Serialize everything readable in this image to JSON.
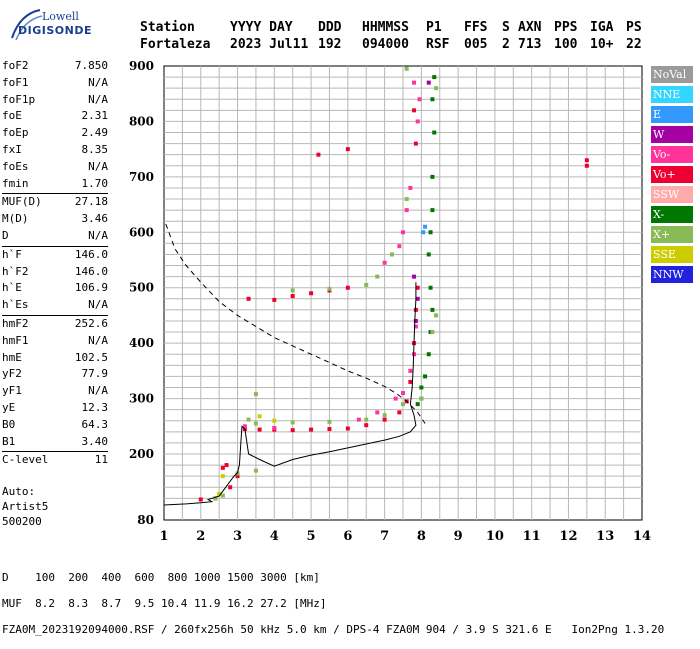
{
  "logo": {
    "line1": "Lowell",
    "line2": "DIGISONDE"
  },
  "header": {
    "row1": [
      "Station",
      "YYYY DAY",
      "DDD",
      "HHMMSS",
      "P1",
      "FFS",
      "S",
      "AXN",
      "PPS",
      "IGA",
      "PS"
    ],
    "row2": [
      "Fortaleza",
      "2023 Jul11",
      "192",
      "094000",
      "RSF",
      "005",
      "2",
      "713",
      "100",
      "10+",
      "22"
    ]
  },
  "params": {
    "group1": [
      {
        "label": "foF2",
        "value": "7.850"
      },
      {
        "label": "foF1",
        "value": "N/A"
      },
      {
        "label": "foF1p",
        "value": "N/A"
      },
      {
        "label": "foE",
        "value": "2.31"
      },
      {
        "label": "foEp",
        "value": "2.49"
      },
      {
        "label": "fxI",
        "value": "8.35"
      },
      {
        "label": "foEs",
        "value": "N/A"
      },
      {
        "label": "fmin",
        "value": "1.70"
      }
    ],
    "group2": [
      {
        "label": "MUF(D)",
        "value": "27.18"
      },
      {
        "label": "M(D)",
        "value": "3.46"
      },
      {
        "label": "D",
        "value": "N/A"
      }
    ],
    "group3": [
      {
        "label": "h`F",
        "value": "146.0"
      },
      {
        "label": "h`F2",
        "value": "146.0"
      },
      {
        "label": "h`E",
        "value": "106.9"
      },
      {
        "label": "h`Es",
        "value": "N/A"
      }
    ],
    "group4": [
      {
        "label": "hmF2",
        "value": "252.6"
      },
      {
        "label": "hmF1",
        "value": "N/A"
      },
      {
        "label": "hmE",
        "value": "102.5"
      },
      {
        "label": "yF2",
        "value": "77.9"
      },
      {
        "label": "yF1",
        "value": "N/A"
      },
      {
        "label": "yE",
        "value": "12.3"
      },
      {
        "label": "B0",
        "value": "64.3"
      },
      {
        "label": "B1",
        "value": "3.40"
      }
    ],
    "group5": [
      {
        "label": "C-level",
        "value": "11"
      }
    ]
  },
  "auto": {
    "line1": "Auto:",
    "line2": "Artist5",
    "line3": "500200"
  },
  "legend": [
    {
      "label": "NoVal",
      "color": "#9a9a9a"
    },
    {
      "label": "NNE",
      "color": "#33d6ff"
    },
    {
      "label": "E",
      "color": "#3399ff"
    },
    {
      "label": "W",
      "color": "#a400a4"
    },
    {
      "label": "Vo-",
      "color": "#ff3399"
    },
    {
      "label": "Vo+",
      "color": "#ee0033"
    },
    {
      "label": "SSW",
      "color": "#ffaaaa"
    },
    {
      "label": "X-",
      "color": "#007700"
    },
    {
      "label": "X+",
      "color": "#88bb55"
    },
    {
      "label": "SSE",
      "color": "#cccc00"
    },
    {
      "label": "NNW",
      "color": "#2222dd"
    }
  ],
  "chart_data": {
    "type": "scatter",
    "x_ticks": [
      "1",
      "2",
      "3",
      "4",
      "5",
      "6",
      "7",
      "8",
      "9",
      "10",
      "11",
      "12",
      "13",
      "14"
    ],
    "y_ticks": [
      "80",
      "200",
      "300",
      "400",
      "500",
      "600",
      "700",
      "800",
      "900"
    ],
    "xlim": [
      1,
      14
    ],
    "ylim": [
      100,
      900
    ],
    "grid": true,
    "legend_position": "right",
    "traces": [
      {
        "color": "#ee0033",
        "points": [
          [
            3.2,
            245
          ],
          [
            3.6,
            244
          ],
          [
            4.0,
            244
          ],
          [
            4.5,
            243
          ],
          [
            5.0,
            244
          ],
          [
            5.5,
            245
          ],
          [
            6.0,
            246
          ],
          [
            6.5,
            252
          ],
          [
            7.0,
            262
          ],
          [
            7.4,
            275
          ],
          [
            7.6,
            295
          ],
          [
            7.7,
            330
          ],
          [
            7.8,
            400
          ],
          [
            7.85,
            460
          ],
          [
            7.9,
            500
          ],
          [
            2.0,
            118
          ],
          [
            2.4,
            120
          ],
          [
            2.8,
            140
          ],
          [
            3.0,
            160
          ],
          [
            3.3,
            480
          ],
          [
            4.0,
            478
          ],
          [
            4.5,
            485
          ],
          [
            5.0,
            490
          ],
          [
            5.5,
            495
          ],
          [
            6.0,
            500
          ],
          [
            2.6,
            175
          ],
          [
            2.7,
            180
          ],
          [
            5.2,
            740
          ],
          [
            6.0,
            750
          ],
          [
            12.5,
            730
          ],
          [
            12.5,
            720
          ],
          [
            7.8,
            820
          ],
          [
            7.85,
            760
          ]
        ]
      },
      {
        "color": "#ff3399",
        "points": [
          [
            7.3,
            300
          ],
          [
            7.5,
            310
          ],
          [
            7.7,
            350
          ],
          [
            7.8,
            380
          ],
          [
            7.85,
            430
          ],
          [
            7.9,
            800
          ],
          [
            7.95,
            840
          ],
          [
            7.8,
            870
          ],
          [
            3.2,
            250
          ],
          [
            4.0,
            247
          ],
          [
            6.3,
            262
          ],
          [
            6.8,
            275
          ],
          [
            7.0,
            545
          ],
          [
            7.2,
            560
          ],
          [
            7.4,
            575
          ],
          [
            7.5,
            600
          ],
          [
            7.6,
            640
          ],
          [
            7.7,
            680
          ]
        ]
      },
      {
        "color": "#007700",
        "points": [
          [
            8.0,
            300
          ],
          [
            8.1,
            340
          ],
          [
            8.2,
            380
          ],
          [
            8.25,
            420
          ],
          [
            8.3,
            460
          ],
          [
            8.25,
            500
          ],
          [
            8.2,
            560
          ],
          [
            8.25,
            600
          ],
          [
            8.3,
            640
          ],
          [
            8.3,
            700
          ],
          [
            8.35,
            780
          ],
          [
            8.3,
            840
          ],
          [
            8.35,
            880
          ],
          [
            7.9,
            290
          ],
          [
            8.0,
            320
          ]
        ]
      },
      {
        "color": "#88bb55",
        "points": [
          [
            2.4,
            120
          ],
          [
            2.6,
            125
          ],
          [
            3.5,
            170
          ],
          [
            3.0,
            165
          ],
          [
            3.5,
            255
          ],
          [
            4.5,
            257
          ],
          [
            5.5,
            258
          ],
          [
            6.5,
            262
          ],
          [
            7.0,
            270
          ],
          [
            7.5,
            290
          ],
          [
            8.0,
            300
          ],
          [
            8.3,
            420
          ],
          [
            8.4,
            450
          ],
          [
            4.5,
            495
          ],
          [
            5.5,
            498
          ],
          [
            6.5,
            505
          ],
          [
            6.8,
            520
          ],
          [
            7.2,
            560
          ],
          [
            7.6,
            660
          ],
          [
            3.5,
            308
          ],
          [
            3.3,
            262
          ],
          [
            7.6,
            895
          ],
          [
            8.4,
            860
          ]
        ]
      },
      {
        "color": "#cccc00",
        "points": [
          [
            2.6,
            160
          ],
          [
            3.6,
            268
          ],
          [
            4.0,
            260
          ],
          [
            2.5,
            128
          ]
        ]
      },
      {
        "color": "#a400a4",
        "points": [
          [
            7.9,
            480
          ],
          [
            7.85,
            440
          ],
          [
            7.8,
            520
          ],
          [
            8.2,
            870
          ]
        ]
      },
      {
        "color": "#3399ff",
        "points": [
          [
            8.05,
            600
          ],
          [
            8.1,
            610
          ]
        ]
      }
    ],
    "lines": [
      {
        "style": "solid",
        "points": [
          [
            1.0,
            108
          ],
          [
            1.6,
            110
          ],
          [
            2.0,
            112
          ],
          [
            2.3,
            114
          ],
          [
            2.2,
            118
          ],
          [
            2.5,
            124
          ],
          [
            2.9,
            160
          ],
          [
            3.0,
            166
          ],
          [
            3.05,
            180
          ],
          [
            3.1,
            230
          ],
          [
            3.12,
            250
          ],
          [
            3.2,
            245
          ],
          [
            3.3,
            200
          ],
          [
            3.6,
            190
          ],
          [
            4.0,
            178
          ],
          [
            4.5,
            190
          ],
          [
            5.0,
            198
          ],
          [
            5.5,
            204
          ],
          [
            6.0,
            211
          ],
          [
            6.5,
            218
          ],
          [
            7.0,
            225
          ],
          [
            7.4,
            232
          ],
          [
            7.7,
            240
          ],
          [
            7.85,
            252
          ],
          [
            7.8,
            270
          ],
          [
            7.7,
            290
          ],
          [
            7.75,
            320
          ],
          [
            7.78,
            360
          ],
          [
            7.8,
            400
          ],
          [
            7.82,
            440
          ],
          [
            7.85,
            480
          ],
          [
            7.85,
            510
          ]
        ]
      },
      {
        "style": "dashed",
        "points": [
          [
            1.05,
            615
          ],
          [
            1.3,
            570
          ],
          [
            1.6,
            540
          ],
          [
            2.0,
            510
          ],
          [
            2.5,
            475
          ],
          [
            3.0,
            450
          ],
          [
            3.5,
            430
          ],
          [
            4.0,
            410
          ],
          [
            4.5,
            395
          ],
          [
            5.0,
            380
          ],
          [
            5.5,
            365
          ],
          [
            6.0,
            350
          ],
          [
            6.5,
            337
          ],
          [
            7.0,
            322
          ],
          [
            7.3,
            310
          ],
          [
            7.6,
            295
          ],
          [
            7.9,
            275
          ],
          [
            8.1,
            255
          ]
        ]
      }
    ]
  },
  "footer": {
    "line1": "D    100  200  400  600  800 1000 1500 3000 [km]",
    "line2": "MUF  8.2  8.3  8.7  9.5 10.4 11.9 16.2 27.2 [MHz]",
    "line3": "FZA0M_2023192094000.RSF / 260fx256h 50 kHz 5.0 km / DPS-4 FZA0M 904 / 3.9 S 321.6 E   Ion2Png 1.3.20"
  }
}
